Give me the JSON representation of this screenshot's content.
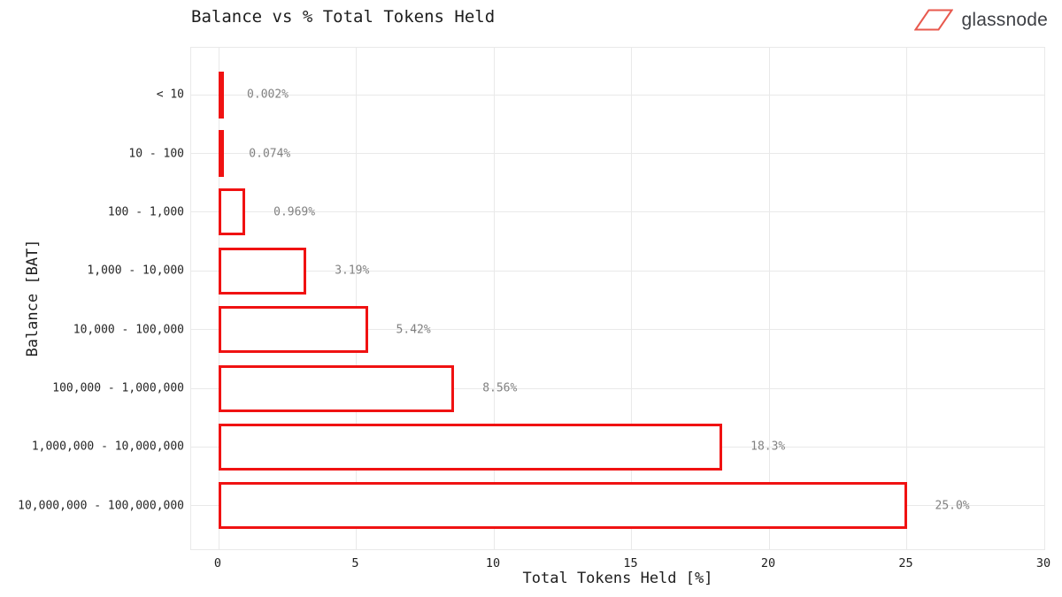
{
  "header": {
    "title": "Balance vs % Total Tokens Held",
    "brand": "glassnode"
  },
  "chart_data": {
    "type": "bar",
    "orientation": "horizontal",
    "title": "Balance vs % Total Tokens Held",
    "xlabel": "Total Tokens Held [%]",
    "ylabel": "Balance [BAT]",
    "categories": [
      "< 10",
      "10 - 100",
      "100 - 1,000",
      "1,000 - 10,000",
      "10,000 - 100,000",
      "100,000 - 1,000,000",
      "1,000,000 - 10,000,000",
      "10,000,000 - 100,000,000"
    ],
    "values": [
      0.002,
      0.074,
      0.969,
      3.19,
      5.42,
      8.56,
      18.3,
      25.0
    ],
    "value_labels": [
      "0.002%",
      "0.074%",
      "0.969%",
      "3.19%",
      "5.42%",
      "8.56%",
      "18.3%",
      "25.0%"
    ],
    "xticks": [
      0,
      5,
      10,
      15,
      20,
      25,
      30
    ],
    "xlim": [
      0,
      30
    ],
    "grid": true,
    "legend": "none",
    "colors": {
      "bar_border": "#f01212",
      "bar_fill": "#ffffff",
      "grid": "#e9e9e9",
      "value_label": "#818181",
      "axis_text": "#262626",
      "logo_red": "#e8594e",
      "brand_text": "#3e4045"
    }
  }
}
